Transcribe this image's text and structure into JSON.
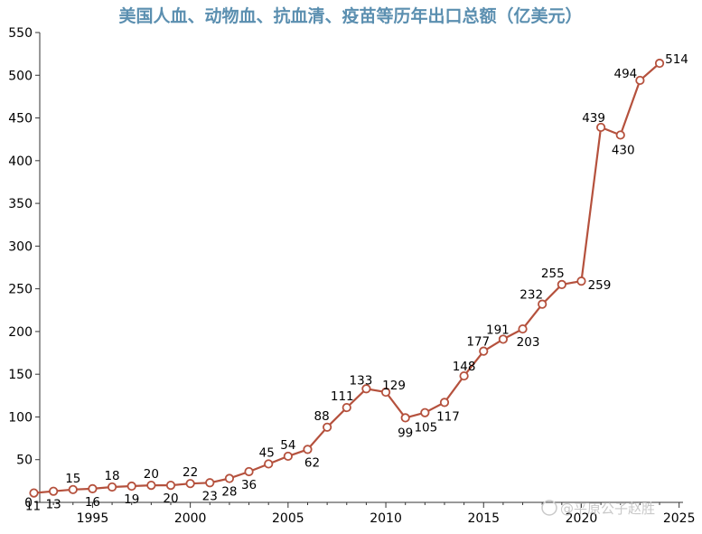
{
  "chart_data": {
    "type": "line",
    "title": "美国人血、动物血、抗血清、疫苗等历年出口总额（亿美元）",
    "xlabel": "",
    "ylabel": "",
    "xlim": [
      1992.3,
      2025.2
    ],
    "ylim": [
      0,
      550
    ],
    "x_ticks": [
      1995,
      2000,
      2005,
      2010,
      2015,
      2020,
      2025
    ],
    "y_ticks": [
      0,
      50,
      100,
      150,
      200,
      250,
      300,
      350,
      400,
      450,
      500,
      550
    ],
    "grid": false,
    "colors": {
      "line": "#b5513d",
      "marker_fill": "#ffffff",
      "title": "#5b8fb0"
    },
    "series": [
      {
        "name": "出口总额",
        "x": [
          1992,
          1993,
          1994,
          1995,
          1996,
          1997,
          1998,
          1999,
          2000,
          2001,
          2002,
          2003,
          2004,
          2005,
          2006,
          2007,
          2008,
          2009,
          2010,
          2011,
          2012,
          2013,
          2014,
          2015,
          2016,
          2017,
          2018,
          2019,
          2020,
          2021,
          2022,
          2023,
          2024
        ],
        "values": [
          11,
          13,
          15,
          16,
          18,
          19,
          20,
          20,
          22,
          23,
          28,
          36,
          45,
          54,
          62,
          88,
          111,
          133,
          129,
          99,
          105,
          117,
          148,
          177,
          191,
          203,
          232,
          255,
          259,
          439,
          430,
          494,
          514
        ],
        "labels": [
          "11",
          "13",
          "15",
          "16",
          "18",
          "19",
          "20",
          "20",
          "22",
          "23",
          "28",
          "36",
          "45",
          "54",
          "62",
          "88",
          "111",
          "133",
          "129",
          "99",
          "105",
          "117",
          "148",
          "177",
          "191",
          "203",
          "232",
          "255",
          "259",
          "439",
          "430",
          "494",
          "514"
        ]
      }
    ]
  },
  "watermark": "@平原公子赵胜"
}
